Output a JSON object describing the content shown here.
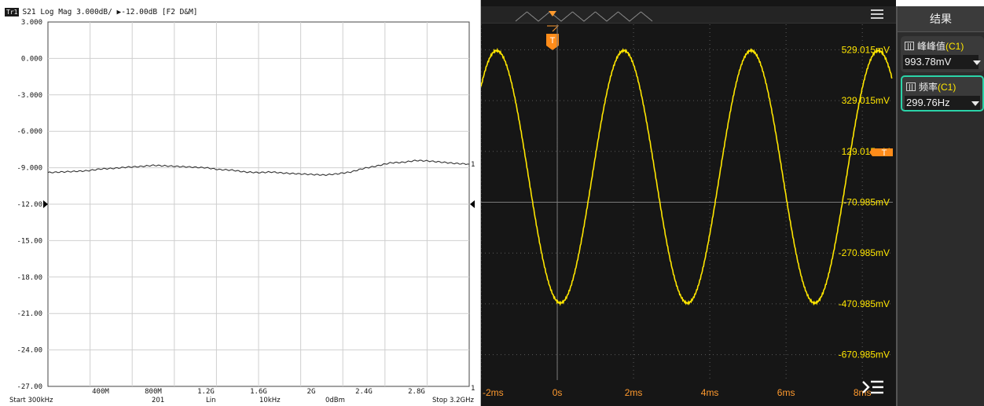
{
  "vna": {
    "trace_badge": "Tr1",
    "header": "S21 Log Mag 3.000dB/ ▶-12.00dB [F2 D&M]",
    "reference_level": -12.0,
    "scale_per_div": 3.0,
    "y_ticks": [
      "3.000",
      "0.000",
      "-3.000",
      "-6.000",
      "-9.000",
      "-12.00",
      "-15.00",
      "-18.00",
      "-21.00",
      "-24.00",
      "-27.00"
    ],
    "x_ticks": [
      "400M",
      "800M",
      "1.2G",
      "1.6G",
      "2G",
      "2.4G",
      "2.8G"
    ],
    "marker_label": "1",
    "marker_label_bottom": "1",
    "trace_color": "#333333",
    "chart_data": {
      "type": "line",
      "x_unit": "GHz",
      "y_unit": "dB",
      "ylim": [
        -27,
        3
      ],
      "xlim": [
        0.0003,
        3.2
      ],
      "x": [
        0.0003,
        0.1,
        0.2,
        0.3,
        0.4,
        0.5,
        0.6,
        0.7,
        0.8,
        0.9,
        1.0,
        1.1,
        1.2,
        1.3,
        1.4,
        1.5,
        1.6,
        1.7,
        1.8,
        1.9,
        2.0,
        2.1,
        2.2,
        2.3,
        2.4,
        2.5,
        2.6,
        2.7,
        2.8,
        2.9,
        3.0,
        3.1,
        3.2
      ],
      "y": [
        -9.4,
        -9.35,
        -9.3,
        -9.25,
        -9.1,
        -9.05,
        -8.95,
        -8.9,
        -8.8,
        -8.85,
        -8.9,
        -8.95,
        -9.0,
        -9.15,
        -9.2,
        -9.35,
        -9.4,
        -9.35,
        -9.45,
        -9.5,
        -9.55,
        -9.6,
        -9.5,
        -9.35,
        -9.05,
        -8.85,
        -8.6,
        -8.55,
        -8.4,
        -8.45,
        -8.55,
        -8.65,
        -8.7
      ]
    },
    "footer": {
      "start": "Start 300kHz",
      "points": "201",
      "sweep": "Lin",
      "ifbw": "10kHz",
      "power": "0dBm",
      "stop": "Stop 3.2GHz"
    }
  },
  "scope": {
    "trigger_label": "T",
    "trigger_level_label": "T",
    "voltage_labels": [
      "529.015mV",
      "329.015mV",
      "129.015mV",
      "-70.985mV",
      "-270.985mV",
      "-470.985mV",
      "-670.985mV"
    ],
    "time_labels": [
      "-2ms",
      "0s",
      "2ms",
      "4ms",
      "6ms",
      "8ms"
    ],
    "trace_color": "#ffe600",
    "chart_data": {
      "type": "line",
      "waveform": "sine",
      "frequency_hz": 299.76,
      "peak_to_peak_mv": 993.78,
      "offset_mv": 29.015,
      "x_unit": "ms",
      "y_unit": "mV",
      "xlim": [
        -2,
        8.8
      ],
      "ylim": [
        -770.985,
        629.015
      ]
    }
  },
  "results": {
    "title": "结果",
    "measurements": [
      {
        "label": "峰峰值",
        "channel": "(C1)",
        "value": "993.78mV"
      },
      {
        "label": "频率",
        "channel": "(C1)",
        "value": "299.76Hz"
      }
    ]
  }
}
